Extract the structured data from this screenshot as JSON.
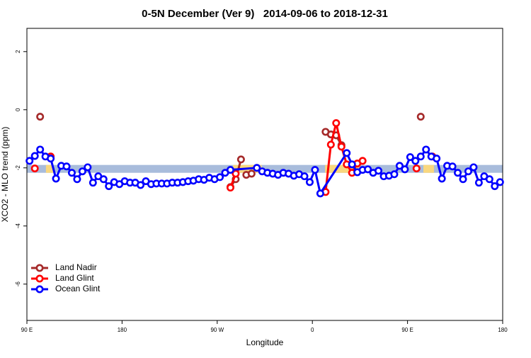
{
  "chart_data": {
    "type": "line",
    "title": "0-5N December (Ver 9)   2014-09-06 to 2018-12-31",
    "x_label": "Longitude",
    "y_label": "XCO2 - MLO trend (ppm)",
    "xlim": [
      90,
      540
    ],
    "ylim": [
      -7.25,
      2.8
    ],
    "xticks": [
      {
        "value": 90,
        "label": "90 E"
      },
      180,
      {
        "value": 270,
        "label": "90 W"
      },
      {
        "value": 360,
        "label": "0"
      },
      {
        "value": 450,
        "label": "90 E"
      },
      {
        "value": 540,
        "label": "180"
      }
    ],
    "yticks": [
      2,
      0,
      -2,
      -4,
      -6
    ],
    "legend": "bottom-left",
    "band": {
      "ymin": -2.17,
      "ymax": -1.9,
      "color": "#a8bcdc"
    },
    "land_regions": {
      "color": "#f9d77e",
      "spans": [
        [
          108,
          115
        ],
        [
          285,
          312
        ],
        [
          372,
          405
        ],
        [
          465,
          475
        ]
      ]
    },
    "series": [
      {
        "name": "Land Nadir",
        "color": "#a52a2a",
        "x": [
          102.5,
          200,
          282.5,
          287.5,
          292.5,
          295,
          297.5,
          302.5,
          340,
          372.5,
          377.5,
          382.5,
          387.5,
          420,
          462.5
        ],
        "values": [
          -0.24,
          null,
          -2.66,
          -2.39,
          -1.71,
          null,
          -2.24,
          -2.2,
          null,
          -0.76,
          -0.85,
          -0.88,
          -1.22,
          null,
          -0.24
        ]
      },
      {
        "name": "Land Glint",
        "color": "#ff0000",
        "x": [
          97.5,
          105,
          112.5,
          200,
          282.5,
          287.5,
          340,
          372.5,
          377.5,
          382.5,
          387.5,
          392.5,
          397.5,
          402.5,
          407.5,
          430,
          458.5,
          466,
          473.5
        ],
        "values": [
          -2.02,
          null,
          -1.61,
          null,
          -2.68,
          -2.2,
          null,
          -2.83,
          -1.2,
          -0.46,
          -1.27,
          -1.88,
          -2.17,
          -1.85,
          -1.76,
          null,
          -2.02,
          null,
          -1.61
        ]
      },
      {
        "name": "Ocean Glint",
        "color": "#0000ff",
        "x": [
          92.5,
          97.5,
          102.5,
          107.5,
          112.5,
          117.5,
          122.5,
          127.5,
          132.5,
          137.5,
          142.5,
          147.5,
          152.5,
          157.5,
          162.5,
          167.5,
          172.5,
          177.5,
          182.5,
          187.5,
          192.5,
          197.5,
          202.5,
          207.5,
          212.5,
          217.5,
          222.5,
          227.5,
          232.5,
          237.5,
          242.5,
          247.5,
          252.5,
          257.5,
          262.5,
          267.5,
          272.5,
          277.5,
          282.5,
          307.5,
          312.5,
          317.5,
          322.5,
          327.5,
          332.5,
          337.5,
          342.5,
          347.5,
          352.5,
          357.5,
          362.5,
          367.5,
          392.5,
          397.5,
          402.5,
          407.5,
          412.5,
          417.5,
          422.5,
          427.5,
          432.5,
          437.5,
          442.5,
          447.5,
          452.5,
          457.5,
          462.5,
          467.5,
          472.5,
          477.5,
          482.5,
          487.5,
          492.5,
          497.5,
          502.5,
          507.5,
          512.5,
          517.5,
          522.5,
          527.5,
          532.5,
          537.5
        ],
        "values": [
          -1.76,
          -1.59,
          -1.37,
          -1.61,
          -1.68,
          -2.37,
          -1.93,
          -1.95,
          -2.17,
          -2.39,
          -2.12,
          -1.98,
          -2.51,
          -2.29,
          -2.39,
          -2.63,
          -2.49,
          -2.56,
          -2.46,
          -2.51,
          -2.51,
          -2.59,
          -2.46,
          -2.56,
          -2.54,
          -2.54,
          -2.54,
          -2.51,
          -2.51,
          -2.49,
          -2.46,
          -2.44,
          -2.39,
          -2.41,
          -2.34,
          -2.39,
          -2.32,
          -2.17,
          -2.07,
          -2.0,
          -2.12,
          -2.17,
          -2.2,
          -2.24,
          -2.17,
          -2.2,
          -2.27,
          -2.22,
          -2.29,
          -2.49,
          -2.07,
          -2.88,
          -1.49,
          -1.88,
          -2.15,
          -2.07,
          -2.05,
          -2.17,
          -2.1,
          -2.29,
          -2.27,
          -2.22,
          -1.93,
          -2.05,
          -1.63,
          -1.76,
          -1.61,
          -1.37,
          -1.61,
          -1.68,
          -2.37,
          -1.93,
          -1.95,
          -2.17,
          -2.39,
          -2.12,
          -1.98,
          -2.51,
          -2.29,
          -2.39,
          -2.63,
          -2.49
        ]
      }
    ]
  }
}
